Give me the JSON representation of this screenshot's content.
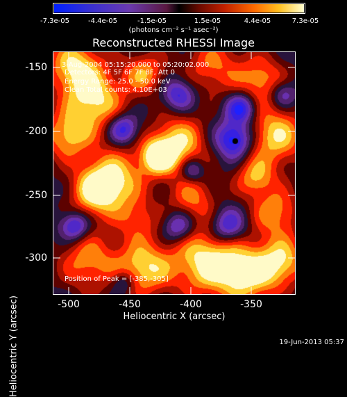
{
  "colorbar": {
    "ticks": [
      "-7.3e-05",
      "-4.4e-05",
      "-1.5e-05",
      "1.5e-05",
      "4.4e-05",
      "7.3e-05"
    ],
    "units": "(photons cm⁻² s⁻¹ asec⁻²)"
  },
  "title": "Reconstructed RHESSI Image",
  "info": {
    "time": "3-Aug-2004 05:15:20.000 to 05:20:02.000",
    "detectors": "Detectors: 4F 5F 6F 7F 8F, Att 0",
    "energy": "Energy Range: 25.0 - 50.0 keV",
    "clean": "Clean     Total counts: 4.10E+03",
    "peak": "Position of Peak = [-385,-305]"
  },
  "axes": {
    "xlabel": "Heliocentric X (arcsec)",
    "ylabel": "Heliocentric Y (arcsec)",
    "xticks": [
      "-500",
      "-450",
      "-400",
      "-350"
    ],
    "yticks": [
      "-150",
      "-200",
      "-250",
      "-300"
    ]
  },
  "timestamp": "19-Jun-2013 05:37"
}
